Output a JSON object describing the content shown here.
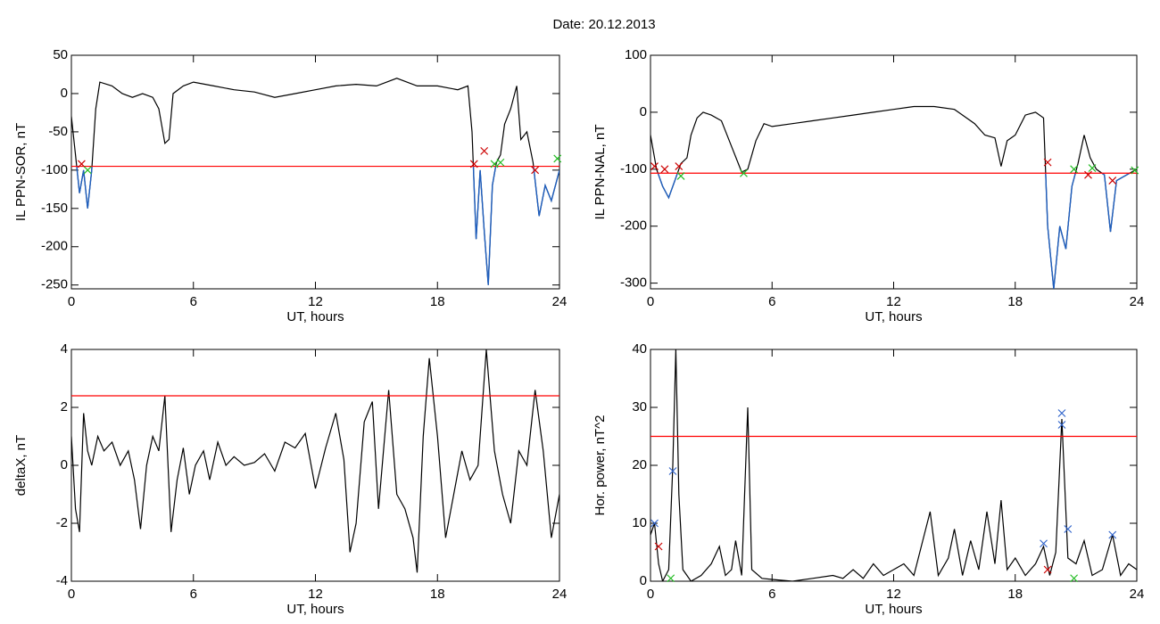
{
  "title": "Date:  20.12.2013",
  "chart_data": [
    {
      "type": "line",
      "xlabel": "UT, hours",
      "ylabel": "IL PPN-SOR, nT",
      "xlim": [
        0,
        24
      ],
      "ylim": [
        -255,
        50
      ],
      "xticks": [
        0,
        6,
        12,
        18,
        24
      ],
      "yticks": [
        50,
        0,
        -50,
        -100,
        -150,
        -200,
        -250
      ],
      "color": "#000000",
      "below_color": "#1f5fbf",
      "x": [
        0,
        0.2,
        0.4,
        0.6,
        0.8,
        1.0,
        1.2,
        1.4,
        2,
        2.5,
        3,
        3.5,
        4,
        4.3,
        4.6,
        4.8,
        5,
        5.5,
        6,
        7,
        8,
        9,
        10,
        11,
        12,
        13,
        14,
        15,
        16,
        17,
        18,
        19,
        19.5,
        19.7,
        19.9,
        20.1,
        20.3,
        20.5,
        20.7,
        20.9,
        21.1,
        21.3,
        21.6,
        21.9,
        22.1,
        22.4,
        22.7,
        23,
        23.3,
        23.6,
        24
      ],
      "values": [
        -30,
        -80,
        -130,
        -100,
        -150,
        -100,
        -20,
        15,
        10,
        0,
        -5,
        0,
        -5,
        -20,
        -65,
        -60,
        0,
        10,
        15,
        10,
        5,
        2,
        -5,
        0,
        5,
        10,
        12,
        10,
        20,
        10,
        10,
        5,
        10,
        -50,
        -190,
        -100,
        -180,
        -250,
        -120,
        -90,
        -80,
        -40,
        -20,
        10,
        -60,
        -50,
        -90,
        -160,
        -120,
        -140,
        -100
      ],
      "threshold": {
        "value": -95,
        "color": "#ff0000"
      },
      "markers": [
        {
          "color": "#cc0000",
          "x": [
            0.5,
            19.8,
            20.3,
            22.8
          ],
          "y": [
            -92,
            -92,
            -75,
            -100
          ]
        },
        {
          "color": "#22bb22",
          "x": [
            0.8,
            20.8,
            21.1,
            23.9
          ],
          "y": [
            -100,
            -92,
            -90,
            -85
          ]
        }
      ]
    },
    {
      "type": "line",
      "xlabel": "UT, hours",
      "ylabel": "IL PPN-NAL, nT",
      "xlim": [
        0,
        24
      ],
      "ylim": [
        -310,
        100
      ],
      "xticks": [
        0,
        6,
        12,
        18,
        24
      ],
      "yticks": [
        100,
        0,
        -100,
        -200,
        -300
      ],
      "color": "#000000",
      "below_color": "#1f5fbf",
      "x": [
        0,
        0.3,
        0.6,
        0.9,
        1.2,
        1.5,
        1.8,
        2,
        2.3,
        2.6,
        3,
        3.5,
        4,
        4.5,
        4.8,
        5.2,
        5.6,
        6,
        7,
        8,
        9,
        10,
        11,
        12,
        13,
        14,
        15,
        16,
        16.5,
        17,
        17.3,
        17.6,
        18,
        18.5,
        19,
        19.4,
        19.6,
        19.9,
        20.2,
        20.5,
        20.8,
        21.1,
        21.4,
        21.7,
        22,
        22.4,
        22.7,
        23,
        23.5,
        24
      ],
      "values": [
        -40,
        -100,
        -130,
        -150,
        -120,
        -90,
        -80,
        -40,
        -10,
        0,
        -5,
        -15,
        -60,
        -105,
        -100,
        -50,
        -20,
        -25,
        -20,
        -15,
        -10,
        -5,
        0,
        5,
        10,
        10,
        5,
        -20,
        -40,
        -45,
        -95,
        -50,
        -40,
        -5,
        0,
        -10,
        -200,
        -310,
        -200,
        -240,
        -130,
        -90,
        -40,
        -80,
        -100,
        -110,
        -210,
        -120,
        -110,
        -100
      ],
      "threshold": {
        "value": -107,
        "color": "#ff0000"
      },
      "markers": [
        {
          "color": "#cc0000",
          "x": [
            0.2,
            0.7,
            1.4,
            19.6,
            21.6,
            22.8
          ],
          "y": [
            -95,
            -100,
            -95,
            -88,
            -110,
            -120
          ]
        },
        {
          "color": "#22bb22",
          "x": [
            1.5,
            4.6,
            20.9,
            21.8,
            23.9
          ],
          "y": [
            -112,
            -107,
            -100,
            -98,
            -102
          ]
        }
      ]
    },
    {
      "type": "line",
      "xlabel": "UT, hours",
      "ylabel": "deltaX, nT",
      "xlim": [
        0,
        24
      ],
      "ylim": [
        -4,
        4
      ],
      "xticks": [
        0,
        6,
        12,
        18,
        24
      ],
      "yticks": [
        4,
        2,
        0,
        -2,
        -4
      ],
      "color": "#000000",
      "x": [
        0,
        0.2,
        0.4,
        0.6,
        0.8,
        1,
        1.3,
        1.6,
        2,
        2.4,
        2.8,
        3.1,
        3.4,
        3.7,
        4,
        4.3,
        4.6,
        4.9,
        5.2,
        5.5,
        5.8,
        6.1,
        6.5,
        6.8,
        7.2,
        7.6,
        8,
        8.5,
        9,
        9.5,
        10,
        10.5,
        11,
        11.5,
        12,
        12.5,
        13,
        13.4,
        13.7,
        14,
        14.4,
        14.8,
        15.1,
        15.6,
        16,
        16.4,
        16.8,
        17,
        17.3,
        17.6,
        18,
        18.4,
        18.8,
        19.2,
        19.6,
        20,
        20.4,
        20.8,
        21.2,
        21.6,
        22,
        22.4,
        22.8,
        23.2,
        23.6,
        24
      ],
      "values": [
        1,
        -1.5,
        -2.3,
        1.8,
        0.5,
        0,
        1,
        0.5,
        0.8,
        0,
        0.5,
        -0.5,
        -2.2,
        0,
        1,
        0.5,
        2.4,
        -2.3,
        -0.5,
        0.6,
        -1,
        0,
        0.5,
        -0.5,
        0.8,
        0,
        0.3,
        0,
        0.1,
        0.4,
        -0.2,
        0.8,
        0.6,
        1.1,
        -0.8,
        0.6,
        1.8,
        0.2,
        -3,
        -2,
        1.5,
        2.2,
        -1.5,
        2.6,
        -1,
        -1.5,
        -2.5,
        -3.7,
        1,
        3.7,
        1,
        -2.5,
        -1,
        0.5,
        -0.5,
        0,
        4,
        0.5,
        -1,
        -2,
        0.5,
        0,
        2.6,
        0.5,
        -2.5,
        -1
      ],
      "threshold": {
        "value": 2.4,
        "color": "#ff0000"
      },
      "markers": []
    },
    {
      "type": "line",
      "xlabel": "UT, hours",
      "ylabel": "Hor. power, nT^2",
      "xlim": [
        0,
        24
      ],
      "ylim": [
        0,
        40
      ],
      "xticks": [
        0,
        6,
        12,
        18,
        24
      ],
      "yticks": [
        40,
        30,
        20,
        10,
        0
      ],
      "color": "#000000",
      "x": [
        0,
        0.2,
        0.4,
        0.6,
        0.9,
        1.1,
        1.25,
        1.4,
        1.6,
        2,
        2.5,
        3,
        3.4,
        3.7,
        4,
        4.2,
        4.5,
        4.8,
        5,
        5.5,
        6,
        7,
        8,
        9,
        9.5,
        10,
        10.5,
        11,
        11.5,
        12,
        12.5,
        13,
        13.8,
        14.2,
        14.7,
        15,
        15.4,
        15.8,
        16.2,
        16.6,
        17,
        17.3,
        17.6,
        18,
        18.5,
        19,
        19.4,
        19.7,
        20,
        20.3,
        20.6,
        21,
        21.4,
        21.8,
        22.3,
        22.8,
        23.2,
        23.6,
        24
      ],
      "values": [
        8,
        10,
        3,
        0,
        2,
        20,
        40,
        15,
        2,
        0,
        1,
        3,
        6,
        1,
        2,
        7,
        1,
        30,
        2,
        0.5,
        0.3,
        0,
        0.5,
        1,
        0.5,
        2,
        0.5,
        3,
        1,
        2,
        3,
        1,
        12,
        1,
        4,
        9,
        1,
        7,
        2,
        12,
        3,
        14,
        2,
        4,
        1,
        3,
        6,
        1,
        5,
        28,
        4,
        3,
        7,
        1,
        2,
        8,
        1,
        3,
        2
      ],
      "threshold": {
        "value": 25,
        "color": "#ff0000"
      },
      "markers": [
        {
          "color": "#3366cc",
          "x": [
            0.2,
            1.1,
            20.3,
            20.3,
            20.6,
            19.4,
            22.8
          ],
          "y": [
            10,
            19,
            29,
            27,
            9,
            6.5,
            8
          ]
        },
        {
          "color": "#cc0000",
          "x": [
            0.4,
            19.6
          ],
          "y": [
            6,
            2
          ]
        },
        {
          "color": "#22bb22",
          "x": [
            1,
            20.9
          ],
          "y": [
            0.5,
            0.5
          ]
        }
      ]
    }
  ]
}
